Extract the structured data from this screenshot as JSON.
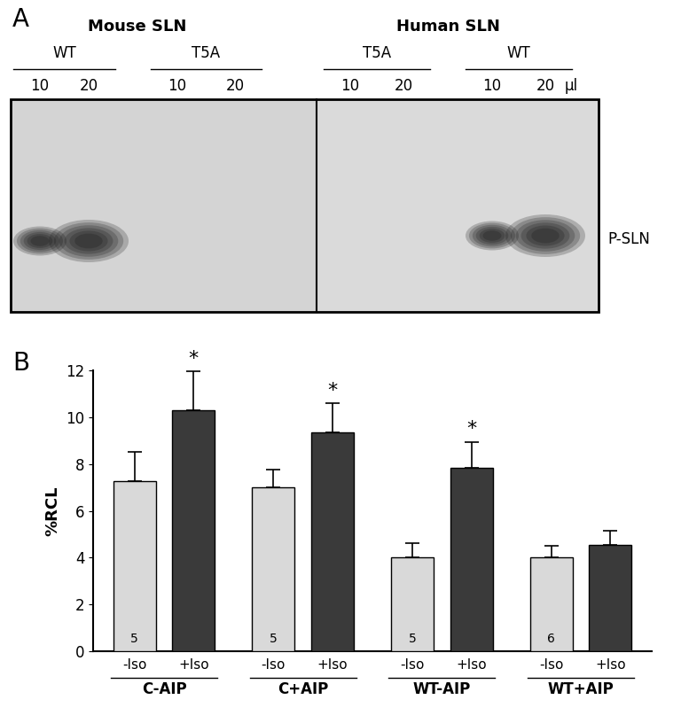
{
  "panel_a": {
    "panel_label": "A",
    "band_label": "P-SLN",
    "unit": "µl",
    "species": [
      {
        "name": "Mouse SLN",
        "constructs": [
          {
            "name": "WT",
            "lanes": [
              {
                "volume": 10,
                "band": true
              },
              {
                "volume": 20,
                "band": true
              }
            ]
          },
          {
            "name": "T5A",
            "lanes": [
              {
                "volume": 10,
                "band": false
              },
              {
                "volume": 20,
                "band": false
              }
            ]
          }
        ]
      },
      {
        "name": "Human SLN",
        "constructs": [
          {
            "name": "T5A",
            "lanes": [
              {
                "volume": 10,
                "band": false
              },
              {
                "volume": 20,
                "band": false
              }
            ]
          },
          {
            "name": "WT",
            "lanes": [
              {
                "volume": 10,
                "band": true
              },
              {
                "volume": 20,
                "band": true
              }
            ]
          }
        ]
      }
    ]
  },
  "chart_data": {
    "type": "bar",
    "panel_label": "B",
    "y_label": "%RCL",
    "categories": [
      "-Iso",
      "+Iso",
      "-Iso",
      "+Iso",
      "-Iso",
      "+Iso",
      "-Iso",
      "+Iso"
    ],
    "groups": [
      "C-AIP",
      "C+AIP",
      "WT-AIP",
      "WT+AIP"
    ],
    "values": [
      7.25,
      10.3,
      7.0,
      9.35,
      4.0,
      7.85,
      4.0,
      4.55
    ],
    "errors": [
      1.25,
      1.65,
      0.75,
      1.25,
      0.6,
      1.1,
      0.5,
      0.6
    ],
    "colors": [
      "#d9d9d9",
      "#3a3a3a",
      "#d9d9d9",
      "#3a3a3a",
      "#d9d9d9",
      "#3a3a3a",
      "#d9d9d9",
      "#3a3a3a"
    ],
    "n_labels": [
      5,
      null,
      5,
      null,
      5,
      null,
      6,
      null
    ],
    "significance": [
      null,
      "*",
      null,
      "*",
      null,
      "*",
      null,
      null
    ],
    "ylim": [
      0,
      12
    ],
    "yticks": [
      0,
      2,
      4,
      6,
      8,
      10,
      12
    ]
  }
}
